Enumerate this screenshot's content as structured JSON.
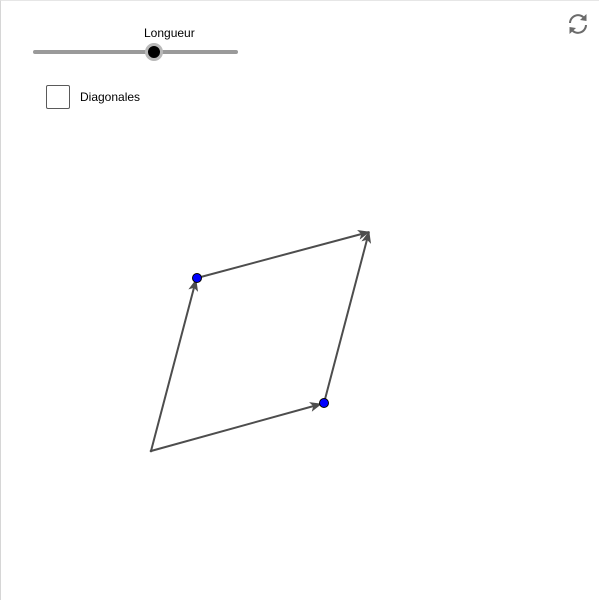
{
  "slider": {
    "label": "Longueur",
    "value_fraction": 0.59
  },
  "checkbox": {
    "label": "Diagonales",
    "checked": false
  },
  "reset": {
    "icon": "refresh-icon"
  },
  "colors": {
    "vector": "#4d4d4d",
    "point_fill": "#0000ff",
    "point_stroke": "#000000",
    "slider_track": "#9a9a9a",
    "slider_thumb": "#000000"
  }
}
